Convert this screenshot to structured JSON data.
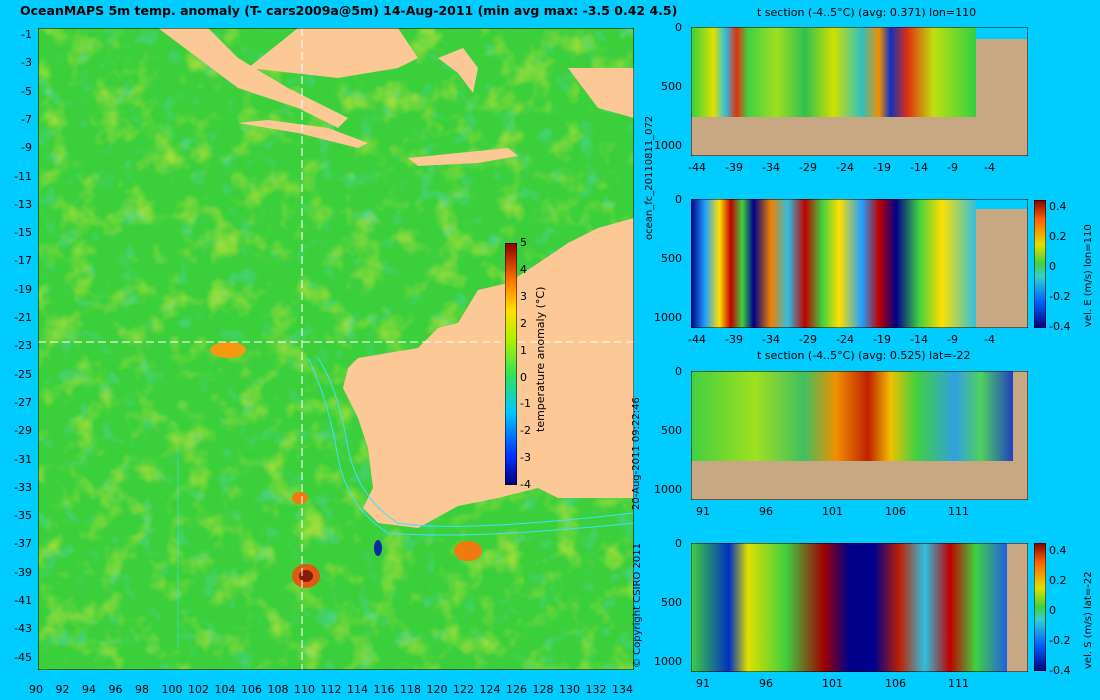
{
  "header": {
    "map_title": "OceanMAPS 5m temp. anomaly (T- cars2009a@5m) 14-Aug-2011 (min avg max: -3.5 0.42 4.5)"
  },
  "colors": {
    "background": "#00ccff",
    "land": "#fcc896",
    "section_land": "#c8a882",
    "contour": "#40e0ff"
  },
  "map": {
    "type": "heatmap",
    "xlabels": [
      "90",
      "92",
      "94",
      "96",
      "98",
      "100",
      "102",
      "104",
      "106",
      "108",
      "110",
      "112",
      "114",
      "116",
      "118",
      "120",
      "122",
      "124",
      "126",
      "128",
      "130",
      "132",
      "134"
    ],
    "ylabels": [
      "-1",
      "-3",
      "-5",
      "-7",
      "-9",
      "-11",
      "-13",
      "-15",
      "-17",
      "-19",
      "-21",
      "-23",
      "-25",
      "-27",
      "-29",
      "-31",
      "-33",
      "-35",
      "-37",
      "-39",
      "-41",
      "-43",
      "-45"
    ],
    "crosshair": {
      "lon": 110,
      "lat": -22
    },
    "colorbar": {
      "label": "temperature anomaly (°C)",
      "ticks": [
        "5",
        "4",
        "3",
        "2",
        "1",
        "0",
        "-1",
        "-2",
        "-3",
        "-4"
      ],
      "range": [
        -4,
        5
      ]
    }
  },
  "side_labels": {
    "forecast_id": "ocean_fc_20110811_072",
    "timestamp": "20-Aug-2011 09:22:46",
    "copyright": "© Copyright CSIRO 2011"
  },
  "panels": [
    {
      "title": "t section (-4..5°C) (avg: 0.371) lon=110",
      "xlabels": [
        "-44",
        "-39",
        "-34",
        "-29",
        "-24",
        "-19",
        "-14",
        "-9",
        "-4"
      ],
      "ylabels": [
        "0",
        "500",
        "1000"
      ],
      "colorbar": null
    },
    {
      "title": "",
      "xlabels": [
        "-44",
        "-39",
        "-34",
        "-29",
        "-24",
        "-19",
        "-14",
        "-9",
        "-4"
      ],
      "ylabels": [
        "0",
        "500",
        "1000"
      ],
      "colorbar": {
        "label": "vel. E (m/s) lon=110",
        "ticks": [
          "0.4",
          "0.2",
          "0",
          "-0.2",
          "-0.4"
        ]
      }
    },
    {
      "title": "t section (-4..5°C) (avg: 0.525) lat=-22",
      "xlabels": [
        "91",
        "96",
        "101",
        "106",
        "111"
      ],
      "ylabels": [
        "0",
        "500",
        "1000"
      ],
      "colorbar": null
    },
    {
      "title": "",
      "xlabels": [
        "91",
        "96",
        "101",
        "106",
        "111"
      ],
      "ylabels": [
        "0",
        "500",
        "1000"
      ],
      "colorbar": {
        "label": "vel. S (m/s) lat=-22",
        "ticks": [
          "0.4",
          "0.2",
          "0",
          "-0.2",
          "-0.4"
        ]
      }
    }
  ],
  "chart_data": [
    {
      "type": "heatmap",
      "title": "OceanMAPS 5m temp. anomaly (T- cars2009a@5m) 14-Aug-2011 (min avg max: -3.5 0.42 4.5)",
      "xlim": [
        90,
        135
      ],
      "ylim": [
        -45,
        0
      ],
      "xticks": [
        90,
        92,
        94,
        96,
        98,
        100,
        102,
        104,
        106,
        108,
        110,
        112,
        114,
        116,
        118,
        120,
        122,
        124,
        126,
        128,
        130,
        132,
        134
      ],
      "yticks": [
        -1,
        -3,
        -5,
        -7,
        -9,
        -11,
        -13,
        -15,
        -17,
        -19,
        -21,
        -23,
        -25,
        -27,
        -29,
        -31,
        -33,
        -35,
        -37,
        -39,
        -41,
        -43,
        -45
      ],
      "colorbar_label": "temperature anomaly (°C)",
      "color_range": [
        -4,
        5
      ],
      "summary": {
        "min": -3.5,
        "avg": 0.42,
        "max": 4.5
      }
    },
    {
      "type": "heatmap",
      "title": "t section (-4..5°C) (avg: 0.371) lon=110",
      "xticks": [
        -44,
        -39,
        -34,
        -29,
        -24,
        -19,
        -14,
        -9,
        -4
      ],
      "yticks": [
        0,
        500,
        1000
      ],
      "color_range": [
        -4,
        5
      ],
      "avg": 0.371
    },
    {
      "type": "heatmap",
      "xticks": [
        -44,
        -39,
        -34,
        -29,
        -24,
        -19,
        -14,
        -9,
        -4
      ],
      "yticks": [
        0,
        500,
        1000
      ],
      "colorbar_label": "vel. E (m/s) lon=110",
      "color_range": [
        -0.4,
        0.4
      ]
    },
    {
      "type": "heatmap",
      "title": "t section (-4..5°C) (avg: 0.525) lat=-22",
      "xticks": [
        91,
        96,
        101,
        106,
        111
      ],
      "yticks": [
        0,
        500,
        1000
      ],
      "color_range": [
        -4,
        5
      ],
      "avg": 0.525
    },
    {
      "type": "heatmap",
      "xticks": [
        91,
        96,
        101,
        106,
        111
      ],
      "yticks": [
        0,
        500,
        1000
      ],
      "colorbar_label": "vel. S (m/s) lat=-22",
      "color_range": [
        -0.4,
        0.4
      ]
    }
  ]
}
